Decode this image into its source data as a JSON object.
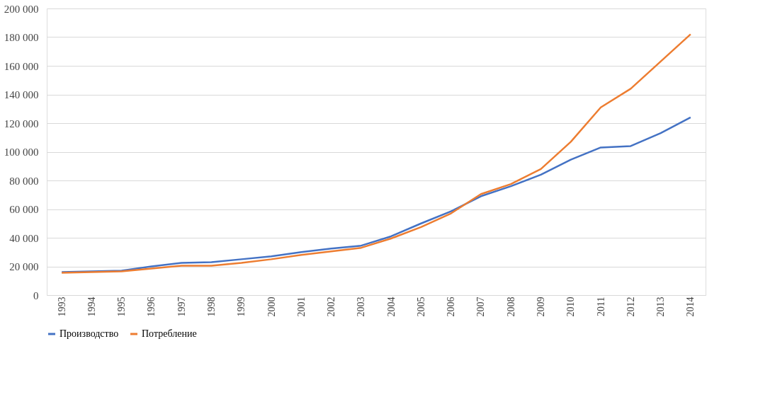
{
  "chart_data": {
    "type": "line",
    "categories": [
      "1993",
      "1994",
      "1995",
      "1996",
      "1997",
      "1998",
      "1999",
      "2000",
      "2001",
      "2002",
      "2003",
      "2004",
      "2005",
      "2006",
      "2007",
      "2008",
      "2009",
      "2010",
      "2011",
      "2012",
      "2013",
      "2014"
    ],
    "series": [
      {
        "name": "Производство",
        "color": "#4472c4",
        "values": [
          16000,
          16500,
          17000,
          20000,
          22500,
          23000,
          25000,
          27000,
          30000,
          32500,
          34500,
          41000,
          50000,
          58500,
          69000,
          76000,
          84000,
          94500,
          103000,
          104000,
          113000,
          124000
        ]
      },
      {
        "name": "Потребление",
        "color": "#ed7d31",
        "values": [
          15500,
          16000,
          16500,
          18500,
          20500,
          20500,
          22500,
          25000,
          28000,
          30500,
          33000,
          39500,
          47500,
          57000,
          70500,
          77500,
          88000,
          107000,
          131000,
          144000,
          163000,
          182000
        ]
      }
    ],
    "ylim": [
      0,
      200000
    ],
    "yticks": [
      0,
      {
        "value": 20000,
        "label": "20 000"
      },
      {
        "value": 40000,
        "label": "40 000"
      },
      {
        "value": 60000,
        "label": "60 000"
      },
      {
        "value": 80000,
        "label": "80 000"
      },
      {
        "value": 100000,
        "label": "100 000"
      },
      {
        "value": 120000,
        "label": "120 000"
      },
      {
        "value": 140000,
        "label": "140 000"
      },
      {
        "value": 160000,
        "label": "160 000"
      },
      {
        "value": 180000,
        "label": "180 000"
      },
      {
        "value": 200000,
        "label": "200 000"
      }
    ],
    "grid": "y",
    "legend": "bottom",
    "marker": "none",
    "line_style": "solid"
  }
}
